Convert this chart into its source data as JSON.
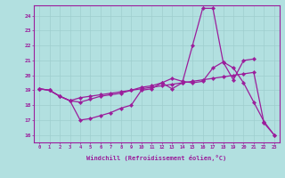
{
  "xlabel": "Windchill (Refroidissement éolien,°C)",
  "x": [
    0,
    1,
    2,
    3,
    4,
    5,
    6,
    7,
    8,
    9,
    10,
    11,
    12,
    13,
    14,
    15,
    16,
    17,
    18,
    19,
    20,
    21,
    22,
    23
  ],
  "line1": [
    19.1,
    19.0,
    18.6,
    18.3,
    17.0,
    17.1,
    17.3,
    17.5,
    17.8,
    18.0,
    19.0,
    19.1,
    19.5,
    19.1,
    19.5,
    22.0,
    24.5,
    24.5,
    20.9,
    20.5,
    19.5,
    18.2,
    16.9,
    16.0
  ],
  "line2": [
    19.1,
    19.0,
    18.6,
    18.3,
    18.2,
    18.4,
    18.6,
    18.7,
    18.8,
    19.0,
    19.2,
    19.3,
    19.5,
    19.8,
    19.6,
    19.5,
    19.6,
    20.5,
    20.9,
    19.7,
    21.0,
    21.1,
    null,
    null
  ],
  "line3": [
    19.1,
    19.0,
    18.6,
    18.3,
    18.5,
    18.6,
    18.7,
    18.8,
    18.9,
    19.0,
    19.1,
    19.2,
    19.3,
    19.4,
    19.5,
    19.6,
    19.7,
    19.8,
    19.9,
    20.0,
    20.1,
    20.2,
    16.8,
    16.0
  ],
  "line_color": "#9b1d9b",
  "bg_color": "#b2e0e0",
  "grid_color": "#9ecece",
  "yticks": [
    16,
    17,
    18,
    19,
    20,
    21,
    22,
    23,
    24
  ],
  "xticks": [
    0,
    1,
    2,
    3,
    4,
    5,
    6,
    7,
    8,
    9,
    10,
    11,
    12,
    13,
    14,
    15,
    16,
    17,
    18,
    19,
    20,
    21,
    22,
    23
  ]
}
